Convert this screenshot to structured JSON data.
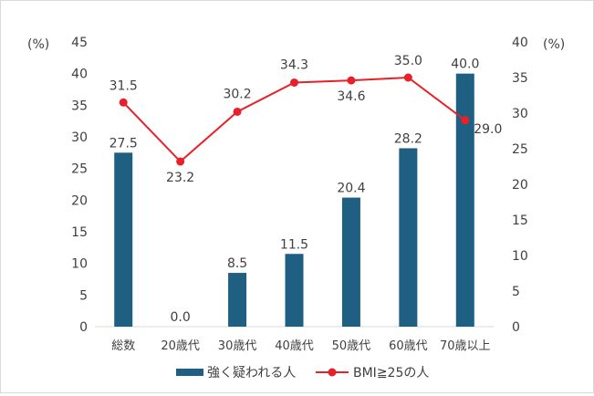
{
  "chart_data": {
    "type": "bar+line",
    "categories": [
      "総数",
      "20歳代",
      "30歳代",
      "40歳代",
      "50歳代",
      "60歳代",
      "70歳以上"
    ],
    "series": [
      {
        "name": "強く疑われる人",
        "type": "bar",
        "axis": "left",
        "color": "#1f5f82",
        "values": [
          27.5,
          0.0,
          8.5,
          11.5,
          20.4,
          28.2,
          40.0
        ],
        "labels": [
          "27.5",
          "0.0",
          "8.5",
          "11.5",
          "20.4",
          "28.2",
          "40.0"
        ]
      },
      {
        "name": "BMI≧25の人",
        "type": "line",
        "axis": "right",
        "color": "#e8202a",
        "values": [
          31.5,
          23.2,
          30.2,
          34.3,
          34.6,
          35.0,
          29.0
        ],
        "labels": [
          "31.5",
          "23.2",
          "30.2",
          "34.3",
          "34.6",
          "35.0",
          "29.0"
        ]
      }
    ],
    "y_left": {
      "unit": "(%)",
      "ylim": [
        0,
        45
      ],
      "ticks": [
        0,
        5,
        10,
        15,
        20,
        25,
        30,
        35,
        40,
        45
      ]
    },
    "y_right": {
      "unit": "(%)",
      "ylim": [
        0,
        40
      ],
      "ticks": [
        0,
        5,
        10,
        15,
        20,
        25,
        30,
        35,
        40
      ]
    },
    "grid": false,
    "legend_position": "bottom"
  }
}
